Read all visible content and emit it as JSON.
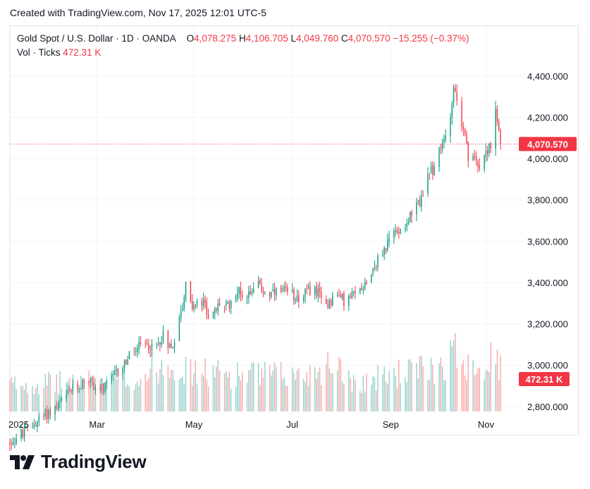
{
  "header": {
    "created": "Created with TradingView.com, Nov 17, 2025 12:01 UTC-5"
  },
  "legend": {
    "symbol": "Gold Spot / U.S. Dollar · 1D · OANDA",
    "o_label": "O",
    "o_value": "4,078.275",
    "h_label": "H",
    "h_value": "4,106.705",
    "l_label": "L",
    "l_value": "4,049.760",
    "c_label": "C",
    "c_value": "4,070.570",
    "change": "−15.255 (−0.37%)",
    "vol_label": "Vol · Ticks",
    "vol_value": "472.31 K"
  },
  "logo": {
    "text": "TradingView"
  },
  "colors": {
    "up": "#089981",
    "down": "#f23645",
    "vol_up": "#92d2cc",
    "vol_down": "#f7a9a7",
    "grid": "#f0f3fa"
  },
  "chart_data": {
    "type": "candlestick",
    "title": "Gold Spot / U.S. Dollar · 1D · OANDA",
    "y_ticks": [
      "4,400.000",
      "4,200.000",
      "4,000.000",
      "3,800.000",
      "3,600.000",
      "3,400.000",
      "3,200.000",
      "3,000.000",
      "2,800.000"
    ],
    "y_tick_values": [
      4400,
      4200,
      4000,
      3800,
      3600,
      3400,
      3200,
      3000,
      2800
    ],
    "ylim": [
      2755,
      4495
    ],
    "x_ticks": [
      "2025",
      "Mar",
      "May",
      "Jul",
      "Sep",
      "Nov"
    ],
    "x_tick_days": [
      0,
      54,
      114,
      175,
      236,
      295
    ],
    "last_price_label": "4,070.570",
    "last_price": 4070.57,
    "last_volume_label": "472.31 K",
    "price_anchors": [
      [
        0,
        2625
      ],
      [
        10,
        2680
      ],
      [
        20,
        2750
      ],
      [
        30,
        2800
      ],
      [
        38,
        2880
      ],
      [
        42,
        2890
      ],
      [
        48,
        2940
      ],
      [
        52,
        2900
      ],
      [
        58,
        2880
      ],
      [
        66,
        2960
      ],
      [
        74,
        3040
      ],
      [
        82,
        3100
      ],
      [
        90,
        3080
      ],
      [
        95,
        3150
      ],
      [
        100,
        3080
      ],
      [
        106,
        3250
      ],
      [
        110,
        3420
      ],
      [
        113,
        3280
      ],
      [
        120,
        3300
      ],
      [
        125,
        3220
      ],
      [
        130,
        3300
      ],
      [
        135,
        3280
      ],
      [
        140,
        3360
      ],
      [
        147,
        3340
      ],
      [
        152,
        3400
      ],
      [
        160,
        3340
      ],
      [
        170,
        3350
      ],
      [
        180,
        3330
      ],
      [
        188,
        3380
      ],
      [
        195,
        3290
      ],
      [
        202,
        3340
      ],
      [
        208,
        3310
      ],
      [
        214,
        3340
      ],
      [
        220,
        3400
      ],
      [
        226,
        3480
      ],
      [
        232,
        3560
      ],
      [
        238,
        3640
      ],
      [
        244,
        3680
      ],
      [
        252,
        3760
      ],
      [
        258,
        3880
      ],
      [
        265,
        4000
      ],
      [
        268,
        4060
      ],
      [
        272,
        4180
      ],
      [
        275,
        4340
      ],
      [
        277,
        4300
      ],
      [
        279,
        4150
      ],
      [
        282,
        4100
      ],
      [
        285,
        3950
      ],
      [
        288,
        4000
      ],
      [
        292,
        3980
      ],
      [
        296,
        4050
      ],
      [
        299,
        4080
      ],
      [
        301,
        4210
      ],
      [
        304,
        4070
      ]
    ],
    "volume_max_k": 1000,
    "volume_anchors": [
      [
        0,
        300
      ],
      [
        40,
        320
      ],
      [
        80,
        350
      ],
      [
        90,
        480
      ],
      [
        100,
        560
      ],
      [
        110,
        430
      ],
      [
        140,
        410
      ],
      [
        180,
        390
      ],
      [
        205,
        560
      ],
      [
        210,
        340
      ],
      [
        220,
        330
      ],
      [
        240,
        420
      ],
      [
        260,
        460
      ],
      [
        270,
        550
      ],
      [
        275,
        650
      ],
      [
        282,
        580
      ],
      [
        290,
        520
      ],
      [
        300,
        570
      ],
      [
        304,
        470
      ]
    ]
  }
}
